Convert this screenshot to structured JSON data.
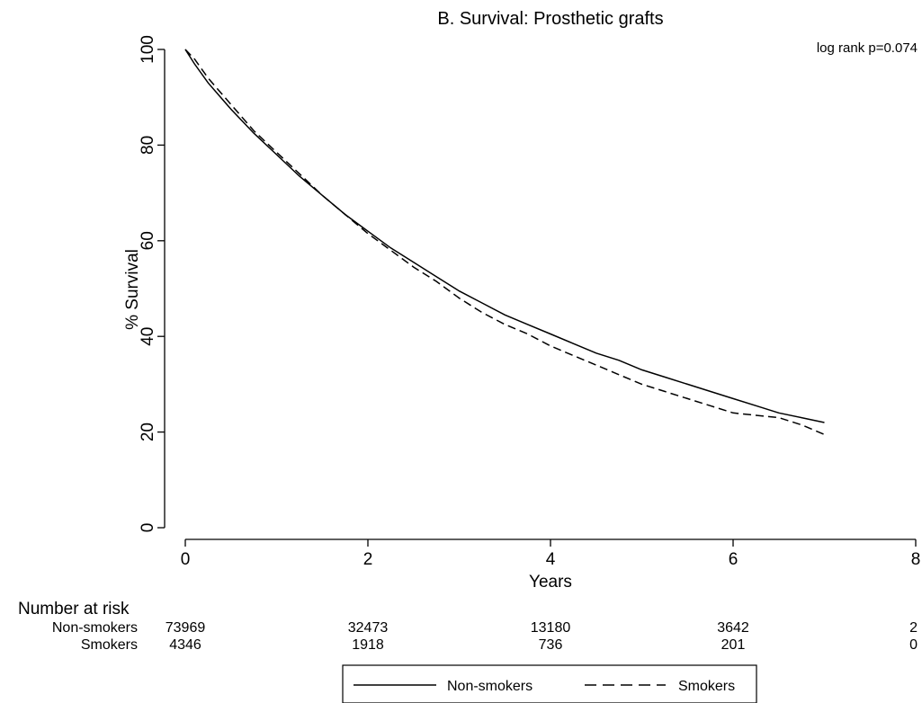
{
  "chart_data": {
    "type": "line",
    "title": "B. Survival: Prosthetic grafts",
    "xlabel": "Years",
    "ylabel": "% Survival",
    "xlim": [
      0,
      8
    ],
    "ylim": [
      0,
      100
    ],
    "xticks": [
      0,
      2,
      4,
      6,
      8
    ],
    "yticks": [
      0,
      20,
      40,
      60,
      80,
      100
    ],
    "grid": false,
    "annotation": "log rank p=0.074",
    "legend_position": "bottom",
    "series": [
      {
        "name": "Non-smokers",
        "style": "solid",
        "x": [
          0,
          0.1,
          0.25,
          0.5,
          0.75,
          1,
          1.25,
          1.5,
          1.75,
          2,
          2.25,
          2.5,
          2.75,
          3,
          3.25,
          3.5,
          3.75,
          4,
          4.25,
          4.5,
          4.75,
          5,
          5.25,
          5.5,
          5.75,
          6,
          6.25,
          6.5,
          6.75,
          7
        ],
        "y": [
          100,
          97,
          93,
          87.5,
          82.5,
          78,
          73.5,
          69.5,
          65.5,
          62,
          58.5,
          55.5,
          52.5,
          49.5,
          47,
          44.5,
          42.5,
          40.5,
          38.5,
          36.5,
          35,
          33,
          31.5,
          30,
          28.5,
          27,
          25.5,
          24,
          23,
          22
        ]
      },
      {
        "name": "Smokers",
        "style": "dashed",
        "x": [
          0,
          0.1,
          0.25,
          0.5,
          0.75,
          1,
          1.25,
          1.5,
          1.75,
          2,
          2.25,
          2.5,
          2.75,
          3,
          3.25,
          3.5,
          3.75,
          4,
          4.25,
          4.5,
          4.75,
          5,
          5.25,
          5.5,
          5.75,
          6,
          6.25,
          6.5,
          6.75,
          7
        ],
        "y": [
          100,
          98,
          94,
          88.5,
          83,
          78.5,
          74,
          69.5,
          65.5,
          61.5,
          58,
          54.5,
          51.5,
          48,
          45,
          42.5,
          40.5,
          38,
          36,
          34,
          32,
          30,
          28.5,
          27,
          25.5,
          24,
          23.5,
          23,
          21.5,
          19.5
        ]
      }
    ],
    "risk_table": {
      "heading": "Number at risk",
      "rows": [
        {
          "label": "Non-smokers",
          "values": [
            "73969",
            "32473",
            "13180",
            "3642",
            "2"
          ]
        },
        {
          "label": "Smokers",
          "values": [
            "4346",
            "1918",
            "736",
            "201",
            "0"
          ]
        }
      ]
    }
  }
}
